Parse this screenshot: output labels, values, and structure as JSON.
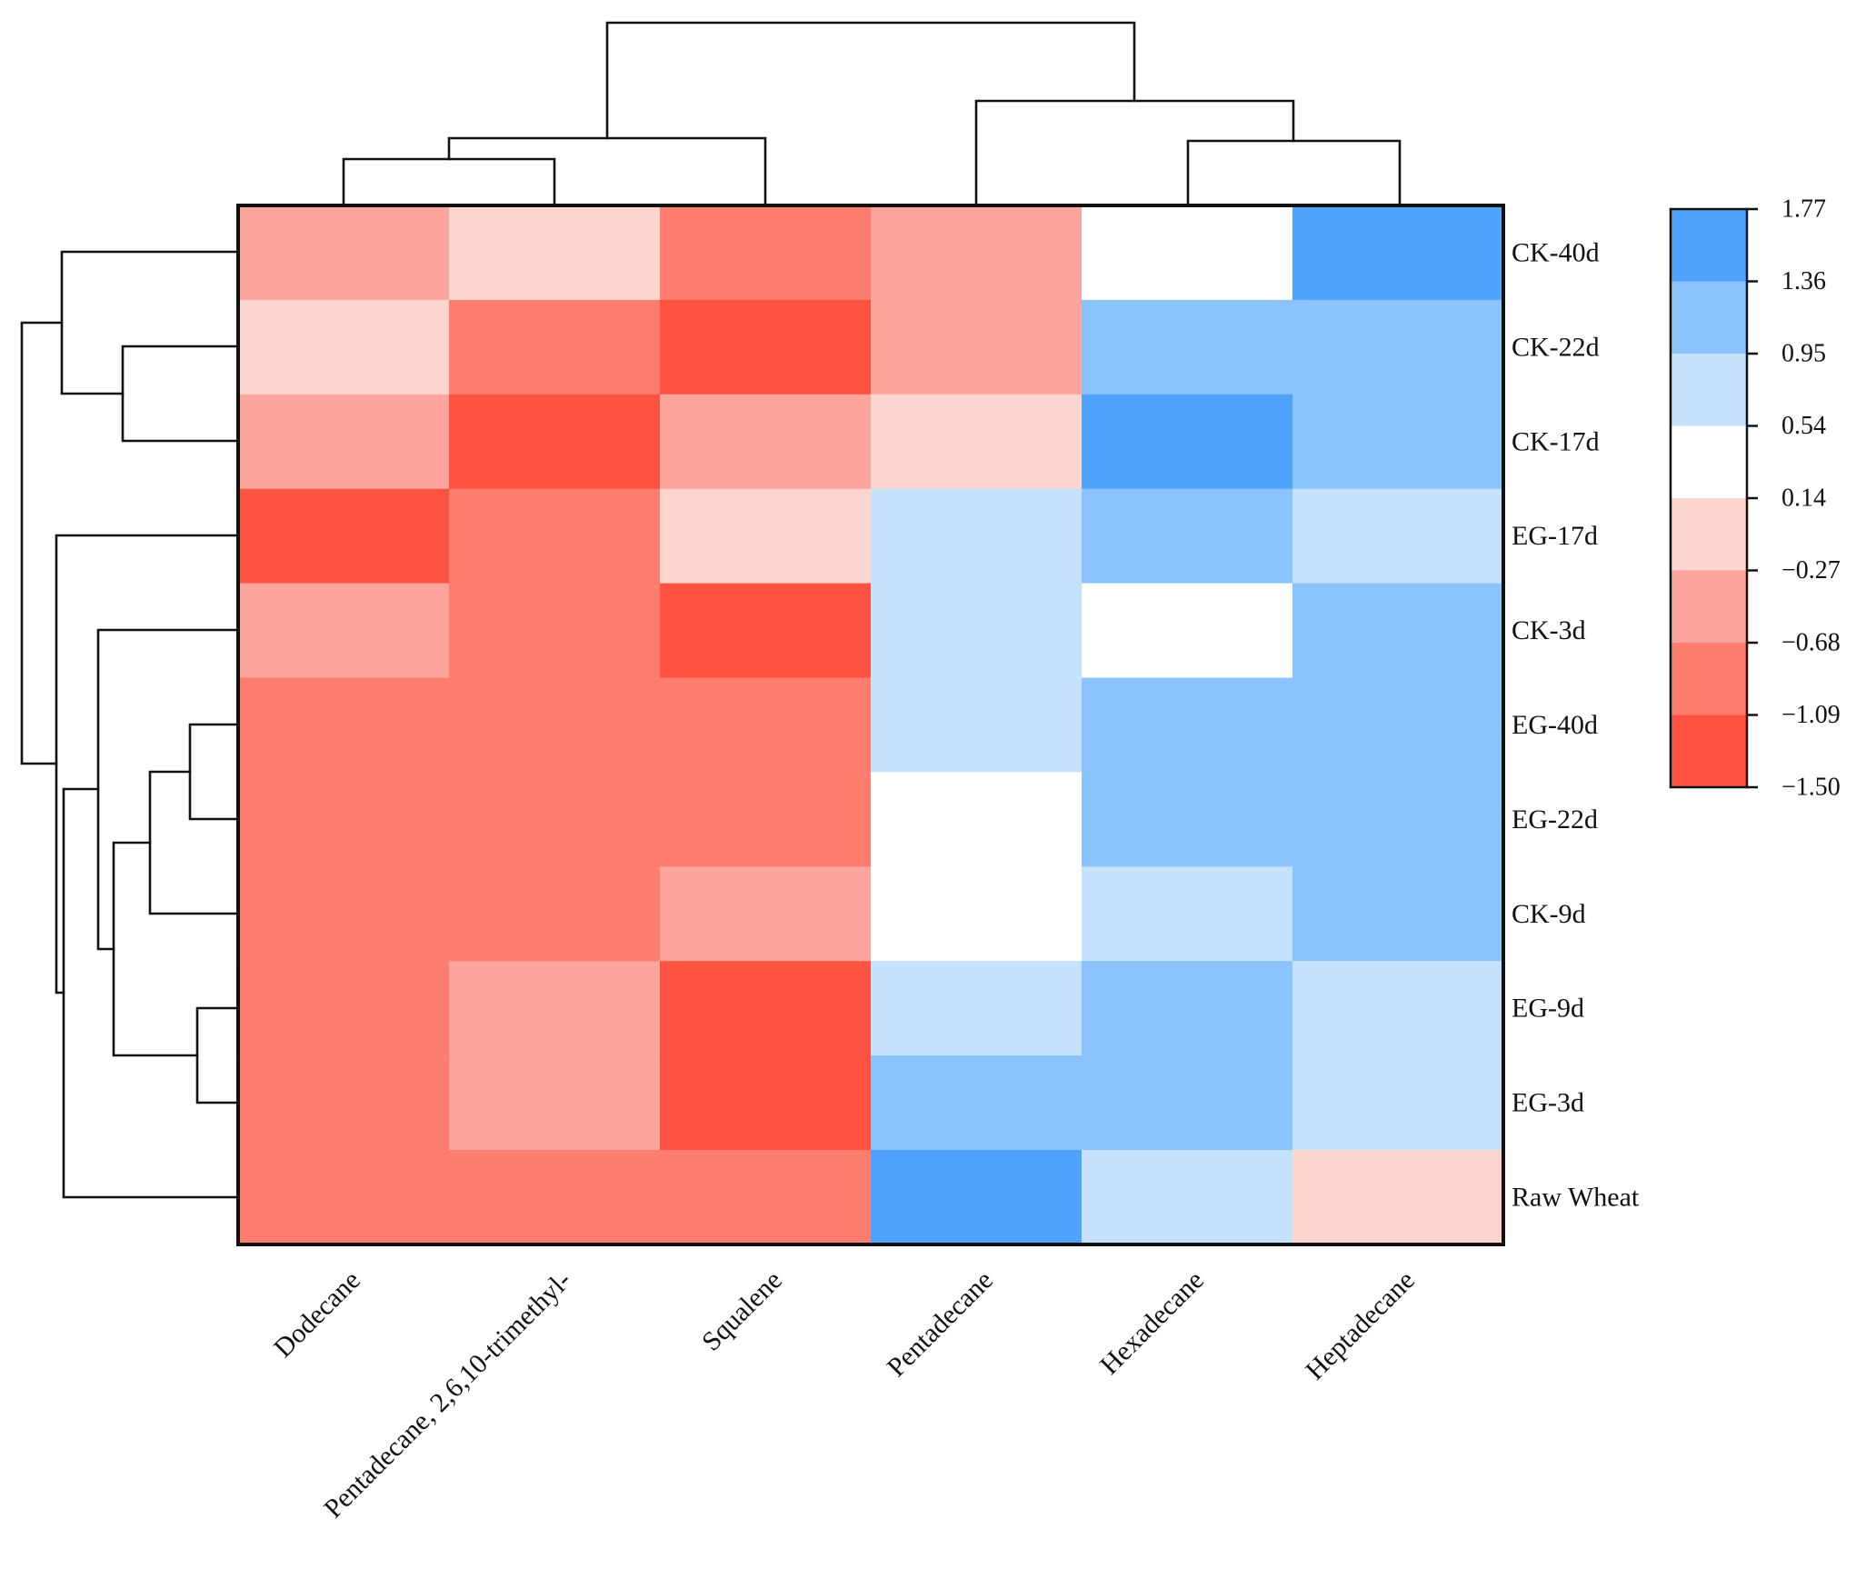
{
  "chart_data": {
    "type": "heatmap",
    "title": "",
    "columns": [
      "Dodecane",
      "Pentadecane, 2,6,10-trimethyl-",
      "Squalene",
      "Pentadecane",
      "Hexadecane",
      "Heptadecane"
    ],
    "rows": [
      "CK-40d",
      "CK-22d",
      "CK-17d",
      "EG-17d",
      "CK-3d",
      "EG-40d",
      "EG-22d",
      "CK-9d",
      "EG-9d",
      "EG-3d",
      "Raw Wheat"
    ],
    "values": [
      [
        -0.48,
        -0.07,
        -0.88,
        -0.48,
        0.34,
        1.57
      ],
      [
        -0.07,
        -0.88,
        -1.3,
        -0.48,
        1.16,
        1.16
      ],
      [
        -0.48,
        -1.3,
        -0.48,
        -0.07,
        1.57,
        1.16
      ],
      [
        -1.3,
        -0.88,
        -0.07,
        0.75,
        1.16,
        0.75
      ],
      [
        -0.48,
        -0.88,
        -1.3,
        0.75,
        0.34,
        1.16
      ],
      [
        -0.88,
        -0.88,
        -0.88,
        0.75,
        1.16,
        1.16
      ],
      [
        -0.88,
        -0.88,
        -0.88,
        0.34,
        1.16,
        1.16
      ],
      [
        -0.88,
        -0.88,
        -0.48,
        0.34,
        0.75,
        1.16
      ],
      [
        -0.88,
        -0.48,
        -1.3,
        0.75,
        1.16,
        0.75
      ],
      [
        -0.88,
        -0.48,
        -1.3,
        1.16,
        1.16,
        0.75
      ],
      [
        -0.88,
        -0.88,
        -0.88,
        1.57,
        0.75,
        -0.07
      ]
    ],
    "colorbar": {
      "ticks": [
        "1.77",
        "1.36",
        "0.95",
        "0.54",
        "0.14",
        "−0.27",
        "−0.68",
        "−1.09",
        "−1.50"
      ],
      "range": [
        -1.5,
        1.77
      ],
      "colors": [
        "#4fa3fd",
        "#8bc3fc",
        "#c6e1fc",
        "#ffffff",
        "#fdd5cf",
        "#fda59c",
        "#fd7d6e",
        "#fe5341"
      ]
    },
    "row_dendrogram": {
      "type": "hierarchical",
      "leaf_order": [
        "CK-40d",
        "CK-22d",
        "CK-17d",
        "EG-17d",
        "CK-3d",
        "EG-40d",
        "EG-22d",
        "CK-9d",
        "EG-9d",
        "EG-3d",
        "Raw Wheat"
      ]
    },
    "col_dendrogram": {
      "type": "hierarchical",
      "leaf_order": [
        "Dodecane",
        "Pentadecane, 2,6,10-trimethyl-",
        "Squalene",
        "Pentadecane",
        "Hexadecane",
        "Heptadecane"
      ]
    }
  }
}
